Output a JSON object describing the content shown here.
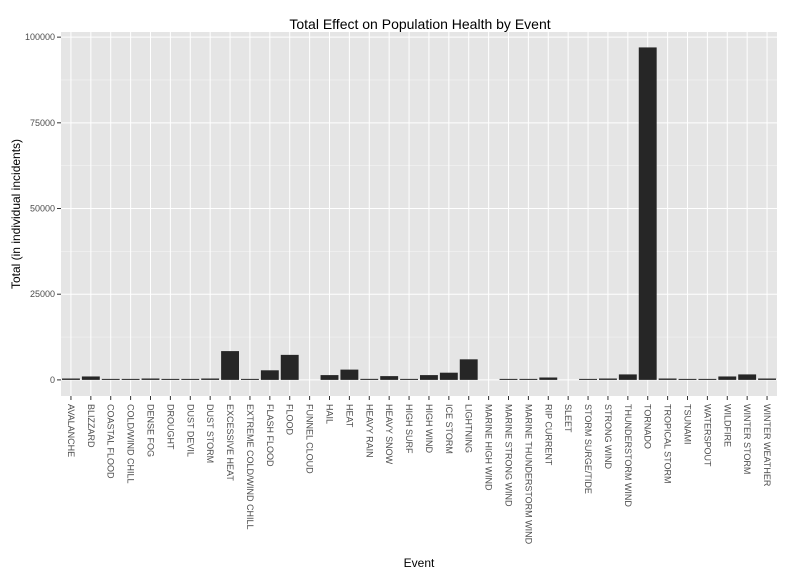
{
  "chart_data": {
    "type": "bar",
    "title": "Total Effect on Population Health by Event",
    "xlabel": "Event",
    "ylabel": "Total (in individual incidents)",
    "ylim": [
      -4700,
      101500
    ],
    "yticks": [
      0,
      25000,
      50000,
      75000,
      100000
    ],
    "ytick_labels": [
      "0",
      "25000",
      "50000",
      "75000",
      "100000"
    ],
    "grid": true,
    "bar_color": "#262626",
    "panel_color": "#e5e5e5",
    "grid_color": "#ffffff",
    "categories": [
      "AVALANCHE",
      "BLIZZARD",
      "COASTAL FLOOD",
      "COLD/WIND CHILL",
      "DENSE FOG",
      "DROUGHT",
      "DUST DEVIL",
      "DUST STORM",
      "EXCESSIVE HEAT",
      "EXTREME COLD/WIND CHILL",
      "FLASH FLOOD",
      "FLOOD",
      "FUNNEL CLOUD",
      "HAIL",
      "HEAT",
      "HEAVY RAIN",
      "HEAVY SNOW",
      "HIGH SURF",
      "HIGH WIND",
      "ICE STORM",
      "LIGHTNING",
      "MARINE HIGH WIND",
      "MARINE STRONG WIND",
      "MARINE THUNDERSTORM WIND",
      "RIP CURRENT",
      "SLEET",
      "STORM SURGE/TIDE",
      "STRONG WIND",
      "THUNDERSTORM WIND",
      "TORNADO",
      "TROPICAL STORM",
      "TSUNAMI",
      "WATERSPOUT",
      "WILDFIRE",
      "WINTER STORM",
      "WINTER WEATHER"
    ],
    "values": [
      400,
      1000,
      50,
      100,
      400,
      50,
      100,
      400,
      8400,
      100,
      2800,
      7300,
      0,
      1400,
      3000,
      300,
      1100,
      100,
      1400,
      2100,
      6000,
      0,
      100,
      100,
      700,
      0,
      100,
      400,
      1600,
      97000,
      400,
      100,
      50,
      1000,
      1600,
      400
    ]
  }
}
